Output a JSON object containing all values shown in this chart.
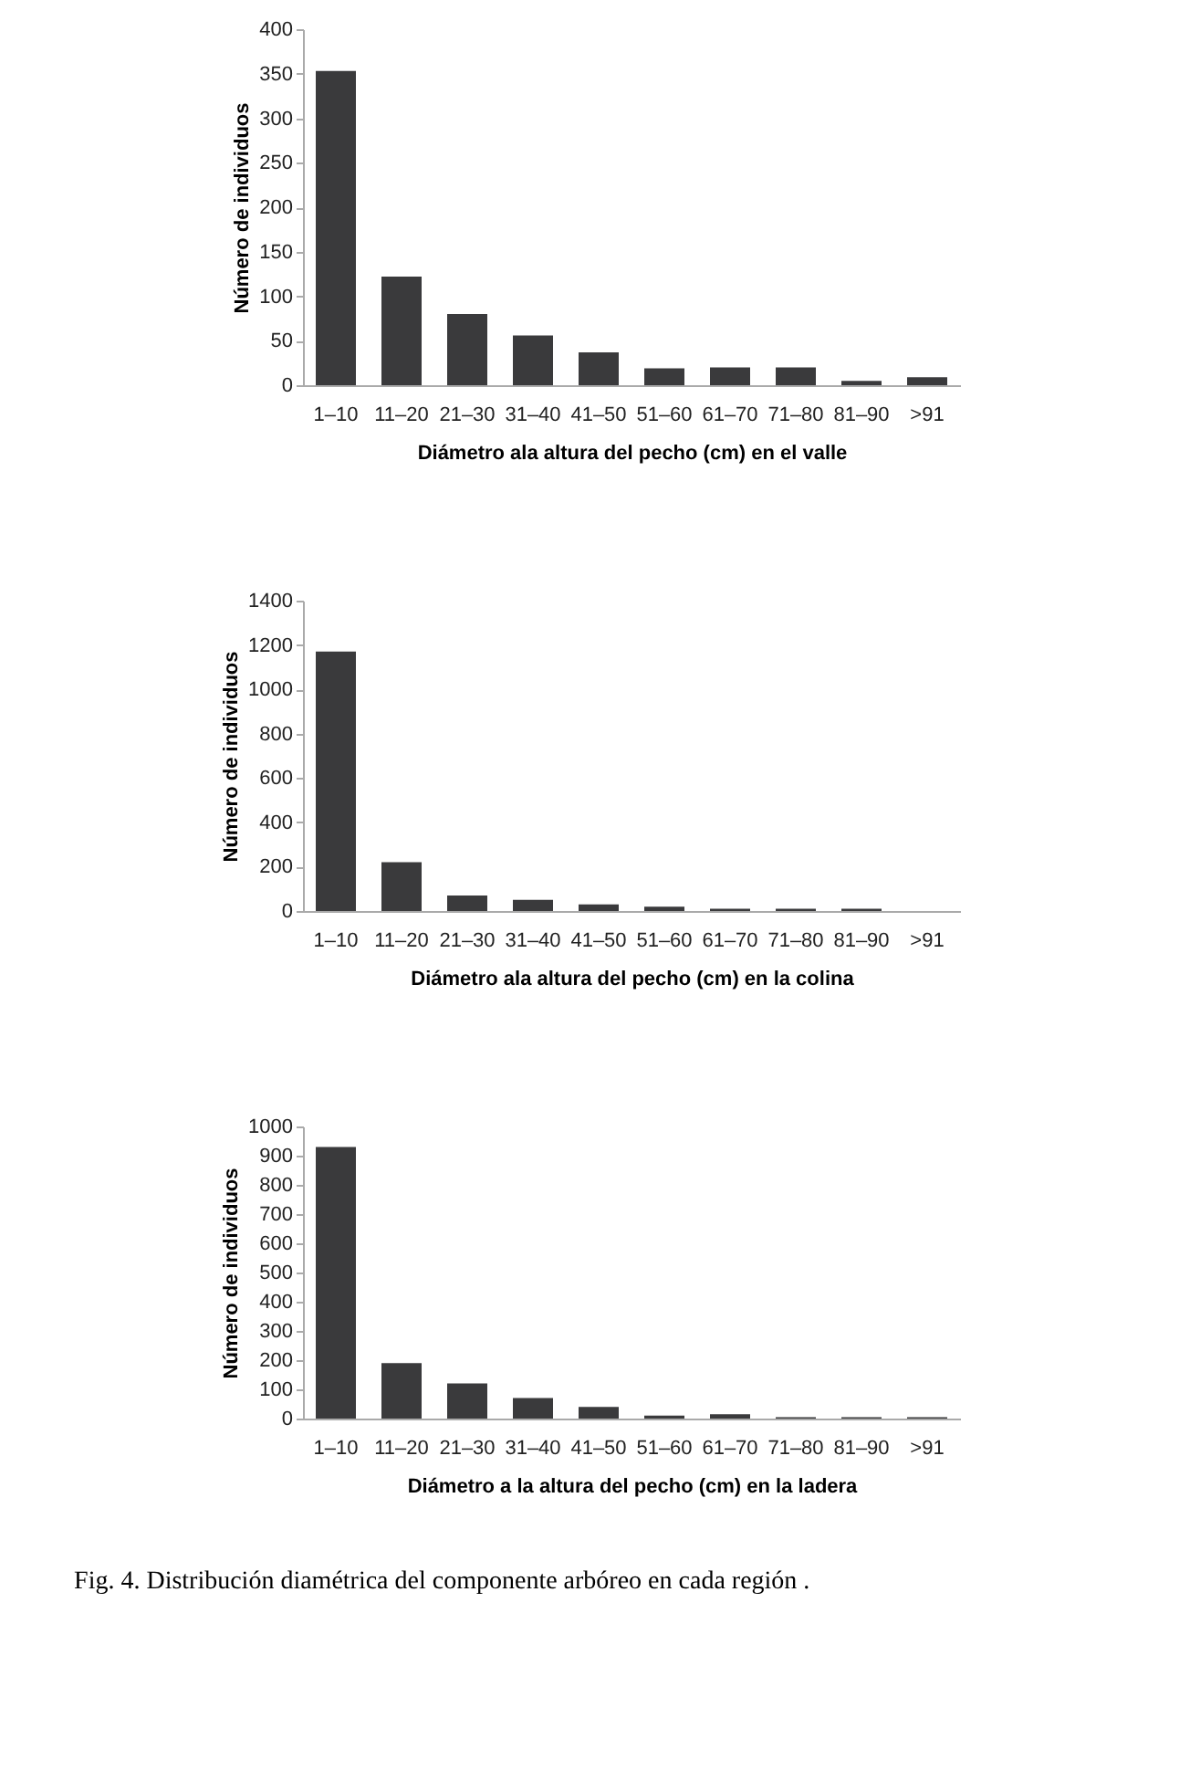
{
  "chart_data": [
    {
      "type": "bar",
      "categories": [
        "1–10",
        "11–20",
        "21–30",
        "31–40",
        "41–50",
        "51–60",
        "61–70",
        "71–80",
        "81–90",
        ">91"
      ],
      "values": [
        353,
        122,
        80,
        56,
        37,
        19,
        20,
        20,
        5,
        9
      ],
      "color": "#3a3a3c",
      "ylim": [
        0,
        400
      ],
      "yticks": [
        0,
        50,
        100,
        150,
        200,
        250,
        300,
        350,
        400
      ],
      "xlabel": "Diámetro ala altura del pecho (cm) en el valle",
      "ylabel": "Número de individuos",
      "grid": false
    },
    {
      "type": "bar",
      "categories": [
        "1–10",
        "11–20",
        "21–30",
        "31–40",
        "41–50",
        "51–60",
        "61–70",
        "71–80",
        "81–90",
        ">91"
      ],
      "values": [
        1170,
        220,
        70,
        50,
        30,
        20,
        10,
        10,
        10,
        0
      ],
      "color": "#3a3a3c",
      "ylim": [
        0,
        1400
      ],
      "yticks": [
        0,
        200,
        400,
        600,
        800,
        1000,
        1200,
        1400
      ],
      "xlabel": "Diámetro ala altura del pecho (cm) en la colina",
      "ylabel": "Número de individuos",
      "grid": false
    },
    {
      "type": "bar",
      "categories": [
        "1–10",
        "11–20",
        "21–30",
        "31–40",
        "41–50",
        "51–60",
        "61–70",
        "71–80",
        "81–90",
        ">91"
      ],
      "values": [
        930,
        190,
        120,
        70,
        40,
        10,
        15,
        5,
        5,
        5
      ],
      "color": "#3a3a3c",
      "ylim": [
        0,
        1000
      ],
      "yticks": [
        0,
        100,
        200,
        300,
        400,
        500,
        600,
        700,
        800,
        900,
        1000
      ],
      "xlabel": "Diámetro a la altura del pecho (cm) en la ladera",
      "ylabel": "Número de individuos",
      "grid": false,
      "annotations": [
        "Fig. 4. Distribución diamétrica del componente arbóreo en cada región ."
      ]
    }
  ]
}
